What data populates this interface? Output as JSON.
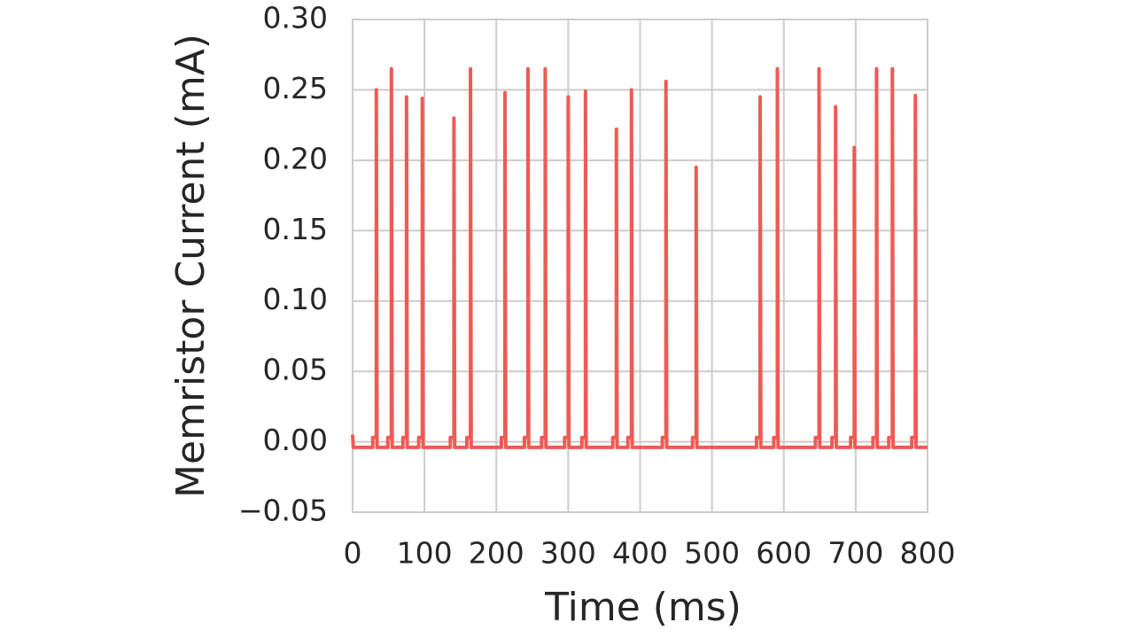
{
  "chart_data": {
    "type": "line",
    "xlabel": "Time (ms)",
    "ylabel": "Memristor Current (mA)",
    "x": [
      0,
      1,
      28,
      28,
      33,
      33,
      34,
      49,
      49,
      54,
      54,
      55,
      70,
      70,
      75,
      75,
      76,
      92,
      92,
      97,
      97,
      98,
      136,
      136,
      141,
      141,
      142,
      159,
      159,
      164,
      164,
      165,
      207,
      207,
      212,
      212,
      213,
      239,
      239,
      244,
      244,
      245,
      263,
      263,
      268,
      268,
      269,
      295,
      295,
      300,
      300,
      301,
      319,
      319,
      324,
      324,
      325,
      362,
      362,
      367,
      367,
      368,
      383,
      383,
      388,
      388,
      389,
      431,
      431,
      436,
      436,
      437,
      473,
      473,
      478,
      478,
      479,
      562,
      562,
      567,
      567,
      568,
      586,
      586,
      591,
      591,
      592,
      644,
      644,
      649,
      649,
      650,
      667,
      667,
      672,
      672,
      673,
      693,
      693,
      698,
      698,
      699,
      724,
      724,
      729,
      729,
      730,
      746,
      746,
      751,
      751,
      752,
      778,
      778,
      783,
      783,
      784,
      800
    ],
    "series": [
      {
        "color": "#ef5a54",
        "values": [
          0.005,
          -0.004,
          -0.004,
          0.003,
          0.003,
          0.25,
          -0.004,
          -0.004,
          0.003,
          0.003,
          0.265,
          -0.004,
          -0.004,
          0.003,
          0.003,
          0.245,
          -0.004,
          -0.004,
          0.003,
          0.003,
          0.244,
          -0.004,
          -0.004,
          0.003,
          0.003,
          0.23,
          -0.004,
          -0.004,
          0.003,
          0.003,
          0.265,
          -0.004,
          -0.004,
          0.003,
          0.003,
          0.248,
          -0.004,
          -0.004,
          0.003,
          0.003,
          0.265,
          -0.004,
          -0.004,
          0.003,
          0.003,
          0.265,
          -0.004,
          -0.004,
          0.003,
          0.003,
          0.245,
          -0.004,
          -0.004,
          0.003,
          0.003,
          0.249,
          -0.004,
          -0.004,
          0.003,
          0.003,
          0.222,
          -0.004,
          -0.004,
          0.003,
          0.003,
          0.25,
          -0.004,
          -0.004,
          0.003,
          0.003,
          0.256,
          -0.004,
          -0.004,
          0.003,
          0.003,
          0.195,
          -0.004,
          -0.004,
          0.003,
          0.003,
          0.245,
          -0.004,
          -0.004,
          0.003,
          0.003,
          0.265,
          -0.004,
          -0.004,
          0.003,
          0.003,
          0.265,
          -0.004,
          -0.004,
          0.003,
          0.003,
          0.238,
          -0.004,
          -0.004,
          0.003,
          0.003,
          0.209,
          -0.004,
          -0.004,
          0.003,
          0.003,
          0.265,
          -0.004,
          -0.004,
          0.003,
          0.003,
          0.265,
          -0.004,
          -0.004,
          0.003,
          0.003,
          0.246,
          -0.004,
          -0.004
        ]
      }
    ],
    "xlim": [
      0,
      800
    ],
    "xticks": [
      0,
      100,
      200,
      300,
      400,
      500,
      600,
      700,
      800
    ],
    "ylim": [
      -0.05,
      0.3
    ],
    "yticks": [
      {
        "value": -0.05,
        "label": "−0.05"
      },
      {
        "value": 0,
        "label": "0.00"
      },
      {
        "value": 0.05,
        "label": "0.05"
      },
      {
        "value": 0.1,
        "label": "0.10"
      },
      {
        "value": 0.15,
        "label": "0.15"
      },
      {
        "value": 0.2,
        "label": "0.20"
      },
      {
        "value": 0.25,
        "label": "0.25"
      },
      {
        "value": 0.3,
        "label": "0.30"
      }
    ],
    "grid": true
  }
}
